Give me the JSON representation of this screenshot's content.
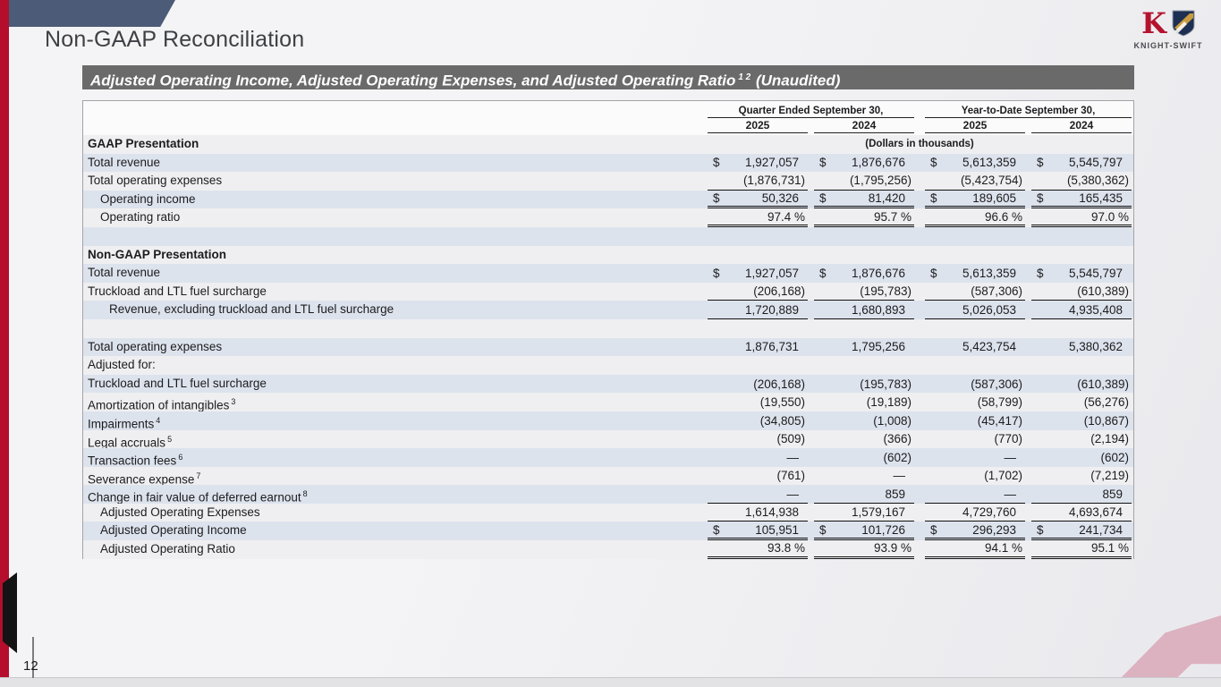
{
  "slide": {
    "title": "Non-GAAP Reconciliation",
    "page_number": "12",
    "logo_text": "KNIGHT-SWIFT",
    "accent_colors": {
      "red": "#b50d2c",
      "slate_blue": "#4c5b77",
      "pink": "#dcb1c0",
      "banner_gray": "#6a6a6a"
    }
  },
  "banner": {
    "title": "Adjusted Operating Income, Adjusted Operating Expenses, and Adjusted Operating Ratio",
    "superscript": "1 2",
    "suffix": " (Unaudited)"
  },
  "table": {
    "col_groups": [
      {
        "label": "Quarter Ended September 30,",
        "years": [
          "2025",
          "2024"
        ]
      },
      {
        "label": "Year-to-Date September 30,",
        "years": [
          "2025",
          "2024"
        ]
      }
    ],
    "rows": [
      {
        "label": "GAAP Presentation",
        "bold": true,
        "note": "(Dollars in thousands)"
      },
      {
        "label": "Total revenue",
        "cells": [
          {
            "d": "$",
            "v": "1,927,057"
          },
          {
            "d": "$",
            "v": "1,876,676"
          },
          {
            "d": "$",
            "v": "5,613,359"
          },
          {
            "d": "$",
            "v": "5,545,797"
          }
        ]
      },
      {
        "label": "Total operating expenses",
        "rule": "b",
        "cells": [
          {
            "v": "(1,876,731)"
          },
          {
            "v": "(1,795,256)"
          },
          {
            "v": "(5,423,754)"
          },
          {
            "v": "(5,380,362)"
          }
        ]
      },
      {
        "label": "Operating income",
        "indent": 1,
        "rule": "db",
        "cells": [
          {
            "d": "$",
            "v": "50,326"
          },
          {
            "d": "$",
            "v": "81,420"
          },
          {
            "d": "$",
            "v": "189,605"
          },
          {
            "d": "$",
            "v": "165,435"
          }
        ]
      },
      {
        "label": "Operating ratio",
        "indent": 1,
        "rule": "db",
        "cells": [
          {
            "v": "97.4 %"
          },
          {
            "v": "95.7 %"
          },
          {
            "v": "96.6 %"
          },
          {
            "v": "97.0 %"
          }
        ]
      },
      {
        "label": ""
      },
      {
        "label": "Non-GAAP Presentation",
        "bold": true
      },
      {
        "label": "Total revenue",
        "cells": [
          {
            "d": "$",
            "v": "1,927,057"
          },
          {
            "d": "$",
            "v": "1,876,676"
          },
          {
            "d": "$",
            "v": "5,613,359"
          },
          {
            "d": "$",
            "v": "5,545,797"
          }
        ]
      },
      {
        "label": "Truckload and LTL fuel surcharge",
        "rule": "b",
        "cells": [
          {
            "v": "(206,168)"
          },
          {
            "v": "(195,783)"
          },
          {
            "v": "(587,306)"
          },
          {
            "v": "(610,389)"
          }
        ]
      },
      {
        "label": "Revenue, excluding truckload and LTL fuel surcharge",
        "indent": 2,
        "rule": "b",
        "cells": [
          {
            "v": "1,720,889"
          },
          {
            "v": "1,680,893"
          },
          {
            "v": "5,026,053"
          },
          {
            "v": "4,935,408"
          }
        ]
      },
      {
        "label": ""
      },
      {
        "label": "Total operating expenses",
        "cells": [
          {
            "v": "1,876,731"
          },
          {
            "v": "1,795,256"
          },
          {
            "v": "5,423,754"
          },
          {
            "v": "5,380,362"
          }
        ]
      },
      {
        "label": "Adjusted for:"
      },
      {
        "label": "Truckload and LTL fuel surcharge",
        "cells": [
          {
            "v": "(206,168)"
          },
          {
            "v": "(195,783)"
          },
          {
            "v": "(587,306)"
          },
          {
            "v": "(610,389)"
          }
        ]
      },
      {
        "label": "Amortization of intangibles",
        "sup": "3",
        "cells": [
          {
            "v": "(19,550)"
          },
          {
            "v": "(19,189)"
          },
          {
            "v": "(58,799)"
          },
          {
            "v": "(56,276)"
          }
        ]
      },
      {
        "label": "Impairments",
        "sup": "4",
        "cells": [
          {
            "v": "(34,805)"
          },
          {
            "v": "(1,008)"
          },
          {
            "v": "(45,417)"
          },
          {
            "v": "(10,867)"
          }
        ]
      },
      {
        "label": "Legal accruals",
        "sup": "5",
        "cells": [
          {
            "v": "(509)"
          },
          {
            "v": "(366)"
          },
          {
            "v": "(770)"
          },
          {
            "v": "(2,194)"
          }
        ]
      },
      {
        "label": "Transaction fees",
        "sup": "6",
        "cells": [
          {
            "v": "—"
          },
          {
            "v": "(602)"
          },
          {
            "v": "—"
          },
          {
            "v": "(602)"
          }
        ]
      },
      {
        "label": "Severance expense",
        "sup": "7",
        "cells": [
          {
            "v": "(761)"
          },
          {
            "v": "—"
          },
          {
            "v": "(1,702)"
          },
          {
            "v": "(7,219)"
          }
        ]
      },
      {
        "label": "Change in fair value of deferred earnout",
        "sup": "8",
        "rule": "b",
        "cells": [
          {
            "v": "—"
          },
          {
            "v": "859"
          },
          {
            "v": "—"
          },
          {
            "v": "859"
          }
        ]
      },
      {
        "label": "Adjusted Operating Expenses",
        "indent": 1,
        "rule": "b",
        "cells": [
          {
            "v": "1,614,938"
          },
          {
            "v": "1,579,167"
          },
          {
            "v": "4,729,760"
          },
          {
            "v": "4,693,674"
          }
        ]
      },
      {
        "label": "Adjusted Operating Income",
        "indent": 1,
        "rule": "db",
        "cells": [
          {
            "d": "$",
            "v": "105,951"
          },
          {
            "d": "$",
            "v": "101,726"
          },
          {
            "d": "$",
            "v": "296,293"
          },
          {
            "d": "$",
            "v": "241,734"
          }
        ]
      },
      {
        "label": "Adjusted Operating Ratio",
        "indent": 1,
        "rule": "db",
        "cells": [
          {
            "v": "93.8 %"
          },
          {
            "v": "93.9 %"
          },
          {
            "v": "94.1 %"
          },
          {
            "v": "95.1 %"
          }
        ]
      }
    ]
  }
}
